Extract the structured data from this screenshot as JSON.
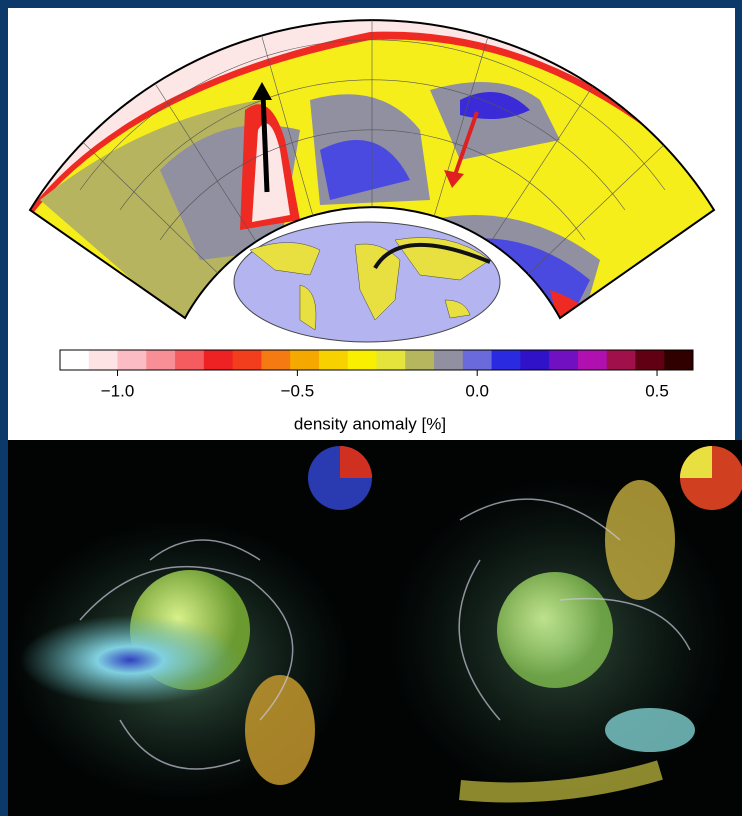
{
  "colorbar": {
    "range": [
      -1.16,
      0.6
    ],
    "colors": [
      "#ffffff",
      "#fde3e3",
      "#fbbcc4",
      "#f88e96",
      "#f45c60",
      "#ee2222",
      "#f23e1c",
      "#f57a12",
      "#f5a800",
      "#f7d200",
      "#f8f000",
      "#e4e43c",
      "#b6b65e",
      "#9090a0",
      "#6a6adc",
      "#2a2ae0",
      "#3012c8",
      "#7010c0",
      "#b010b0",
      "#a0104a",
      "#600012",
      "#300000"
    ],
    "ticks": [
      {
        "value": -1.0,
        "label": "−1.0"
      },
      {
        "value": -0.5,
        "label": "−0.5"
      },
      {
        "value": 0.0,
        "label": "0.0"
      },
      {
        "value": 0.5,
        "label": "0.5"
      }
    ],
    "label": "density anomaly [%]"
  }
}
